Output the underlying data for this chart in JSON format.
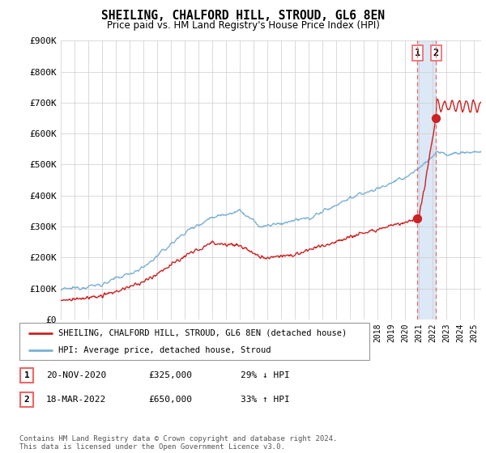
{
  "title": "SHEILING, CHALFORD HILL, STROUD, GL6 8EN",
  "subtitle": "Price paid vs. HM Land Registry's House Price Index (HPI)",
  "ylim": [
    0,
    900000
  ],
  "yticks": [
    0,
    100000,
    200000,
    300000,
    400000,
    500000,
    600000,
    700000,
    800000,
    900000
  ],
  "ytick_labels": [
    "£0",
    "£100K",
    "£200K",
    "£300K",
    "£400K",
    "£500K",
    "£600K",
    "£700K",
    "£800K",
    "£900K"
  ],
  "hpi_color": "#7ab0d4",
  "price_color": "#cc2222",
  "vline_color": "#ee6666",
  "point1_date": 2020.88,
  "point1_price": 325000,
  "point2_date": 2022.21,
  "point2_price": 650000,
  "legend_label1": "SHEILING, CHALFORD HILL, STROUD, GL6 8EN (detached house)",
  "legend_label2": "HPI: Average price, detached house, Stroud",
  "note1_num": "1",
  "note1_date": "20-NOV-2020",
  "note1_price": "£325,000",
  "note1_pct": "29% ↓ HPI",
  "note2_num": "2",
  "note2_date": "18-MAR-2022",
  "note2_price": "£650,000",
  "note2_pct": "33% ↑ HPI",
  "footer": "Contains HM Land Registry data © Crown copyright and database right 2024.\nThis data is licensed under the Open Government Licence v3.0.",
  "bg_shade_color": "#dce8f5",
  "xlim_start": 1995,
  "xlim_end": 2025.5
}
